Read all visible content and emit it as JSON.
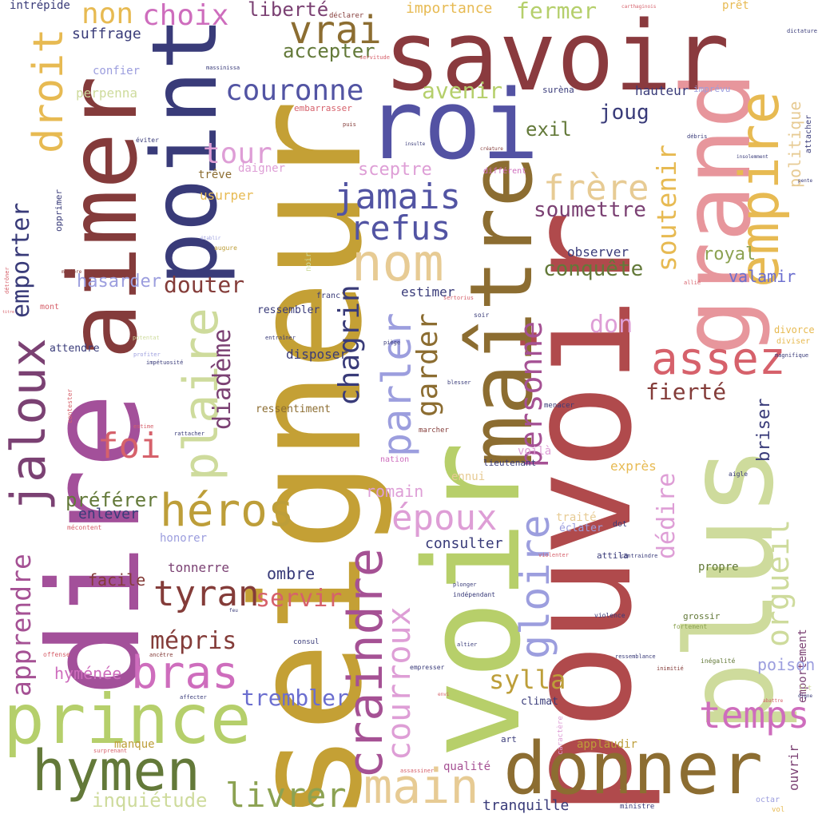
{
  "words": [
    {
      "text": "seigneur",
      "color": "#c4a035",
      "vertical": true
    },
    {
      "text": "pouvoir",
      "color": "#b04a4c",
      "vertical": true
    },
    {
      "text": "dire",
      "color": "#a3509a",
      "vertical": true
    },
    {
      "text": "voir",
      "color": "#b7cf6a",
      "vertical": true
    },
    {
      "text": "savoir",
      "color": "#8a3a3e"
    },
    {
      "text": "aimer",
      "color": "#843b3b",
      "vertical": true
    },
    {
      "text": "roi",
      "color": "#5352a3"
    },
    {
      "text": "point",
      "color": "#393b79",
      "vertical": true
    },
    {
      "text": "plus",
      "color": "#cedb9c",
      "vertical": true
    },
    {
      "text": "maître",
      "color": "#8c6d31",
      "vertical": true
    },
    {
      "text": "grand",
      "color": "#e7969c",
      "vertical": true
    },
    {
      "text": "donner",
      "color": "#8c6d31"
    },
    {
      "text": "prince",
      "color": "#b5cf6b"
    },
    {
      "text": "hymen",
      "color": "#637939"
    },
    {
      "text": "empire",
      "color": "#e7ba52",
      "vertical": true
    },
    {
      "text": "craindre",
      "color": "#a55194",
      "vertical": true
    },
    {
      "text": "nom",
      "color": "#e7cb94"
    },
    {
      "text": "main",
      "color": "#e7cb94"
    },
    {
      "text": "jaloux",
      "color": "#7b4173",
      "vertical": true
    },
    {
      "text": "plaire",
      "color": "#cedb9c",
      "vertical": true
    },
    {
      "text": "héros",
      "color": "#bd9e39"
    },
    {
      "text": "bras",
      "color": "#ce6dbd"
    },
    {
      "text": "assez",
      "color": "#d6616b"
    },
    {
      "text": "gloire",
      "color": "#9c9ede",
      "vertical": true
    },
    {
      "text": "parler",
      "color": "#9c9ede",
      "vertical": true
    },
    {
      "text": "courroux",
      "color": "#de9ed6",
      "vertical": true
    },
    {
      "text": "droit",
      "color": "#e7ba52",
      "vertical": true
    },
    {
      "text": "vrai",
      "color": "#8c6d31"
    },
    {
      "text": "non",
      "color": "#e7ba52"
    },
    {
      "text": "choix",
      "color": "#ce6dbd"
    },
    {
      "text": "couronne",
      "color": "#5254a3"
    },
    {
      "text": "jamais",
      "color": "#5254a3"
    },
    {
      "text": "refus",
      "color": "#5254a3"
    },
    {
      "text": "tour",
      "color": "#de9ed6"
    },
    {
      "text": "frère",
      "color": "#e7cb94"
    },
    {
      "text": "temps",
      "color": "#ce6dbd"
    },
    {
      "text": "orgueil",
      "color": "#cedb9c",
      "vertical": true
    },
    {
      "text": "tyran",
      "color": "#843c39"
    },
    {
      "text": "époux",
      "color": "#de9ed6"
    },
    {
      "text": "livrer",
      "color": "#8ca252"
    },
    {
      "text": "personne",
      "color": "#a55194",
      "vertical": true
    },
    {
      "text": "garder",
      "color": "#8c6d31",
      "vertical": true
    },
    {
      "text": "chagrin",
      "color": "#393b79",
      "vertical": true
    },
    {
      "text": "foi",
      "color": "#d6616b"
    },
    {
      "text": "apprendre",
      "color": "#a55194",
      "vertical": true
    },
    {
      "text": "emporter",
      "color": "#393b79",
      "vertical": true
    },
    {
      "text": "diadème",
      "color": "#7b4173",
      "vertical": true
    },
    {
      "text": "soutenir",
      "color": "#e7ba52",
      "vertical": true
    },
    {
      "text": "dédire",
      "color": "#de9ed6",
      "vertical": true
    },
    {
      "text": "briser",
      "color": "#393b79",
      "vertical": true
    },
    {
      "text": "sylla",
      "color": "#bd9e39"
    },
    {
      "text": "servir",
      "color": "#d6616b"
    },
    {
      "text": "mépris",
      "color": "#843c39"
    },
    {
      "text": "trembler",
      "color": "#6b6ecf"
    },
    {
      "text": "fierté",
      "color": "#843c39"
    },
    {
      "text": "avenir",
      "color": "#b5cf6b"
    },
    {
      "text": "fermer",
      "color": "#b5cf6b"
    },
    {
      "text": "liberté",
      "color": "#7b4173"
    },
    {
      "text": "accepter",
      "color": "#637939"
    },
    {
      "text": "exil",
      "color": "#637939"
    },
    {
      "text": "joug",
      "color": "#393b79"
    },
    {
      "text": "soumettre",
      "color": "#7b4173"
    },
    {
      "text": "sceptre",
      "color": "#de9ed6"
    },
    {
      "text": "douter",
      "color": "#843c39"
    },
    {
      "text": "hasarder",
      "color": "#9c9ede"
    },
    {
      "text": "don",
      "color": "#de9ed6"
    },
    {
      "text": "conquête",
      "color": "#637939"
    },
    {
      "text": "royal",
      "color": "#8ca252"
    },
    {
      "text": "valamir",
      "color": "#6b6ecf"
    },
    {
      "text": "politique",
      "color": "#e7cb94",
      "vertical": true
    },
    {
      "text": "préférer",
      "color": "#637939"
    },
    {
      "text": "enlever",
      "color": "#393b79"
    },
    {
      "text": "romain",
      "color": "#de9ed6"
    },
    {
      "text": "ombre",
      "color": "#393b79"
    },
    {
      "text": "consulter",
      "color": "#393b79"
    },
    {
      "text": "facile",
      "color": "#843c39"
    },
    {
      "text": "tonnerre",
      "color": "#7b4173"
    },
    {
      "text": "hyménée",
      "color": "#ce6dbd"
    },
    {
      "text": "poison",
      "color": "#9c9ede"
    },
    {
      "text": "inquiétude",
      "color": "#cedb9c"
    },
    {
      "text": "suffrage",
      "color": "#393b79"
    },
    {
      "text": "importance",
      "color": "#e7ba52"
    },
    {
      "text": "intrépide",
      "color": "#393b79"
    },
    {
      "text": "prêt",
      "color": "#e7ba52"
    },
    {
      "text": "hauteur",
      "color": "#393b79"
    },
    {
      "text": "ressembler",
      "color": "#393b79"
    },
    {
      "text": "disposer",
      "color": "#393b79"
    },
    {
      "text": "estimer",
      "color": "#393b79"
    },
    {
      "text": "observer",
      "color": "#393b79"
    },
    {
      "text": "attendre",
      "color": "#393b79"
    },
    {
      "text": "usurper",
      "color": "#e7ba52"
    },
    {
      "text": "trêve",
      "color": "#8c6d31"
    },
    {
      "text": "daigner",
      "color": "#de9ed6"
    },
    {
      "text": "confier",
      "color": "#9c9ede"
    },
    {
      "text": "perpenna",
      "color": "#cedb9c"
    },
    {
      "text": "ressentiment",
      "color": "#8c6d31"
    },
    {
      "text": "tranquille",
      "color": "#393b79"
    },
    {
      "text": "manque",
      "color": "#bd9e39"
    },
    {
      "text": "honorer",
      "color": "#9c9ede"
    },
    {
      "text": "qualité",
      "color": "#a55194"
    },
    {
      "text": "applaudir",
      "color": "#bd9e39"
    },
    {
      "text": "exprès",
      "color": "#e7ba52"
    },
    {
      "text": "ennui",
      "color": "#e7cb94"
    },
    {
      "text": "traité",
      "color": "#e7cb94"
    },
    {
      "text": "éclater",
      "color": "#9c9ede"
    },
    {
      "text": "voilà",
      "color": "#de9ed6"
    },
    {
      "text": "propre",
      "color": "#637939"
    },
    {
      "text": "climat",
      "color": "#393b79"
    },
    {
      "text": "art",
      "color": "#393b79"
    },
    {
      "text": "ouvrir",
      "color": "#7b4173",
      "vertical": true
    },
    {
      "text": "emportement",
      "color": "#7b4173",
      "vertical": true
    },
    {
      "text": "lieutenant",
      "color": "#393b79"
    },
    {
      "text": "grossir",
      "color": "#637939"
    },
    {
      "text": "attila",
      "color": "#393b79"
    },
    {
      "text": "dot",
      "color": "#393b79"
    },
    {
      "text": "divorce",
      "color": "#e7ba52"
    },
    {
      "text": "diviser",
      "color": "#e7ba52"
    },
    {
      "text": "imprévu",
      "color": "#9c9ede"
    },
    {
      "text": "surèna",
      "color": "#393b79"
    },
    {
      "text": "menacer",
      "color": "#393b79"
    },
    {
      "text": "marcher",
      "color": "#843c39"
    },
    {
      "text": "opprimer",
      "color": "#ce6dbd"
    },
    {
      "text": "nation",
      "color": "#393b79",
      "vertical": true
    },
    {
      "text": "mont",
      "color": "#d6616b"
    },
    {
      "text": "octar",
      "color": "#9c9ede"
    },
    {
      "text": "vol",
      "color": "#e7ba52"
    },
    {
      "text": "ministre",
      "color": "#393b79"
    },
    {
      "text": "différent",
      "color": "#ce6dbd"
    },
    {
      "text": "embarrasser",
      "color": "#d6616b"
    },
    {
      "text": "massinissa",
      "color": "#393b79"
    },
    {
      "text": "dictature",
      "color": "#393b79"
    },
    {
      "text": "carthaginois",
      "color": "#d6616b"
    },
    {
      "text": "déclarer",
      "color": "#843c39"
    },
    {
      "text": "servitude",
      "color": "#d6616b"
    },
    {
      "text": "franc",
      "color": "#393b79"
    },
    {
      "text": "soir",
      "color": "#393b79"
    },
    {
      "text": "sertorius",
      "color": "#d6616b"
    },
    {
      "text": "piège",
      "color": "#393b79"
    },
    {
      "text": "entraîner",
      "color": "#393b79"
    },
    {
      "text": "profiter",
      "color": "#9c9ede"
    },
    {
      "text": "impétuosité",
      "color": "#393b79"
    },
    {
      "text": "blesser",
      "color": "#393b79"
    },
    {
      "text": "estime",
      "color": "#d6616b"
    },
    {
      "text": "rattacher",
      "color": "#393b79"
    },
    {
      "text": "mécontent",
      "color": "#d6616b"
    },
    {
      "text": "offense",
      "color": "#d6616b"
    },
    {
      "text": "ancêtre",
      "color": "#843c39"
    },
    {
      "text": "affecter",
      "color": "#393b79"
    },
    {
      "text": "surprenant",
      "color": "#d6616b"
    },
    {
      "text": "consul",
      "color": "#393b79"
    },
    {
      "text": "empresser",
      "color": "#393b79"
    },
    {
      "text": "altier",
      "color": "#393b79"
    },
    {
      "text": "plonger",
      "color": "#393b79"
    },
    {
      "text": "indépendant",
      "color": "#393b79"
    },
    {
      "text": "violence",
      "color": "#393b79"
    },
    {
      "text": "ressemblance",
      "color": "#393b79"
    },
    {
      "text": "inimitié",
      "color": "#843c39"
    },
    {
      "text": "inégalité",
      "color": "#637939"
    },
    {
      "text": "fortement",
      "color": "#8ca252"
    },
    {
      "text": "aigle",
      "color": "#393b79"
    },
    {
      "text": "violenter",
      "color": "#d6616b"
    },
    {
      "text": "contraindre",
      "color": "#393b79"
    },
    {
      "text": "magnifique",
      "color": "#393b79"
    },
    {
      "text": "débris",
      "color": "#393b79",
      "vertical": true
    },
    {
      "text": "insolemment",
      "color": "#393b79"
    },
    {
      "text": "attacher",
      "color": "#d6616b"
    },
    {
      "text": "allié",
      "color": "#bd9e39"
    },
    {
      "text": "augure",
      "color": "#393b79"
    },
    {
      "text": "éviter",
      "color": "#843c39"
    },
    {
      "text": "puis",
      "color": "#843c39"
    },
    {
      "text": "créature",
      "color": "#de9ed6"
    },
    {
      "text": "noir",
      "color": "#cedb9c",
      "vertical": true
    },
    {
      "text": "insulte",
      "color": "#393b79"
    },
    {
      "text": "lit",
      "color": "#cedb9c"
    },
    {
      "text": "digne",
      "color": "#393b79"
    },
    {
      "text": "abattre",
      "color": "#d6616b"
    },
    {
      "text": "caractère",
      "color": "#d6616b"
    },
    {
      "text": "potentat",
      "color": "#de9ed6",
      "vertical": true
    },
    {
      "text": "contester",
      "color": "#cedb9c"
    },
    {
      "text": "détrôner",
      "color": "#d6616b",
      "vertical": true
    },
    {
      "text": "assassiner",
      "color": "#d6616b",
      "vertical": true
    },
    {
      "text": "manière",
      "color": "#d6616b"
    },
    {
      "text": "établir",
      "color": "#843c39"
    },
    {
      "text": "pente",
      "color": "#9c9ede"
    },
    {
      "text": "titre",
      "color": "#393b79"
    },
    {
      "text": "feu",
      "color": "#d6616b"
    },
    {
      "text": "envi",
      "color": "#393b79"
    },
    {
      "text": "douce",
      "color": "#d6616b"
    }
  ]
}
